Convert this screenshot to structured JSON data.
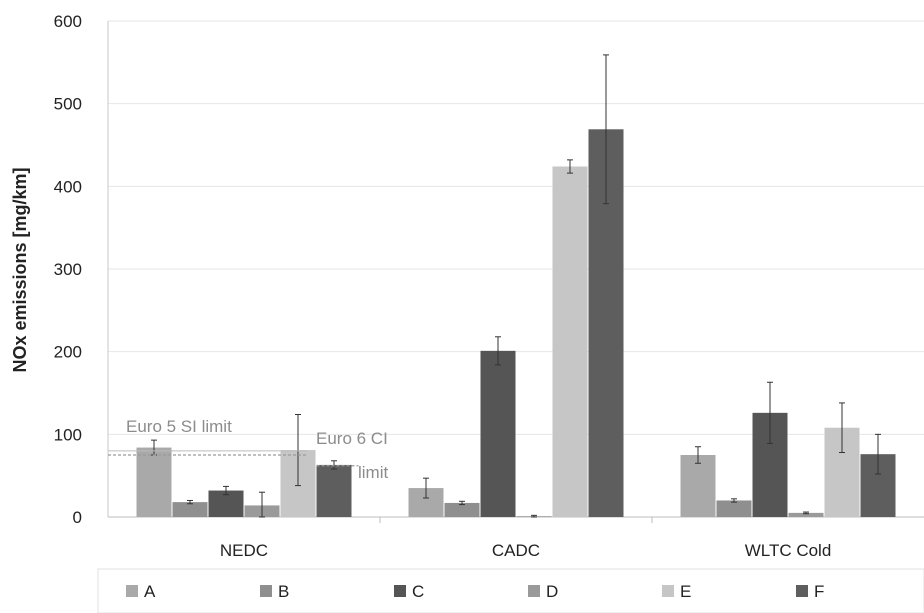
{
  "chart_data": {
    "type": "bar",
    "title": "",
    "xlabel": "",
    "ylabel": "NOx emissions [mg/km]",
    "ylim": [
      0,
      600
    ],
    "yticks": [
      0,
      100,
      200,
      300,
      400,
      500,
      600
    ],
    "grid": true,
    "legend_position": "bottom",
    "categories": [
      "NEDC",
      "CADC",
      "WLTC Cold"
    ],
    "series": [
      {
        "name": "A",
        "color": "#a9a9a9",
        "values": [
          84,
          35,
          75
        ],
        "err": [
          9,
          12,
          10
        ]
      },
      {
        "name": "B",
        "color": "#8f8f8f",
        "values": [
          18,
          17,
          20
        ],
        "err": [
          2,
          2,
          2
        ]
      },
      {
        "name": "C",
        "color": "#555555",
        "values": [
          32,
          201,
          126
        ],
        "err": [
          5,
          17,
          37
        ]
      },
      {
        "name": "D",
        "color": "#9a9a9a",
        "values": [
          14,
          1,
          5
        ],
        "err": [
          16,
          1,
          1
        ]
      },
      {
        "name": "E",
        "color": "#c6c6c6",
        "values": [
          81,
          424,
          108
        ],
        "err": [
          43,
          8,
          30
        ]
      },
      {
        "name": "F",
        "color": "#5e5e5e",
        "values": [
          63,
          469,
          76
        ],
        "err": [
          5,
          90,
          24
        ]
      }
    ],
    "reference_lines": [
      {
        "label": "Euro 5 SI limit",
        "value": 75
      },
      {
        "label_line1": "Euro 6 CI",
        "label_line2": "limit",
        "value": 80
      }
    ]
  }
}
